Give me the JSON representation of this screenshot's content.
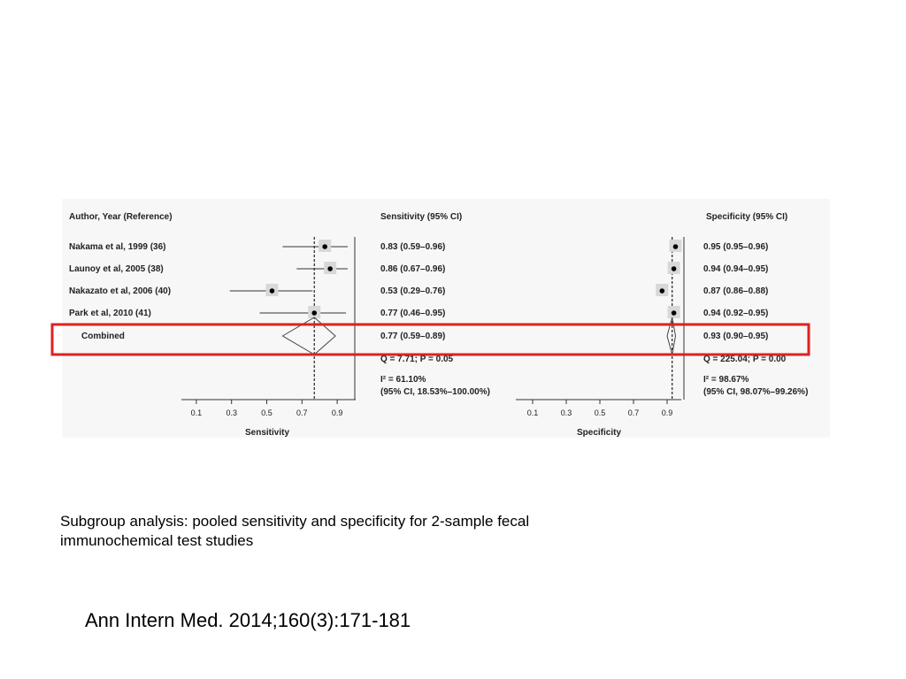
{
  "chart_data": {
    "type": "forest",
    "headers": {
      "study": "Author, Year (Reference)",
      "sensitivity": "Sensitivity (95% CI)",
      "specificity": "Specificity (95% CI)"
    },
    "studies": [
      {
        "label": "Nakama et al, 1999 (36)",
        "sens": 0.83,
        "sens_lo": 0.59,
        "sens_hi": 0.96,
        "sens_text": "0.83 (0.59–0.96)",
        "spec": 0.95,
        "spec_lo": 0.95,
        "spec_hi": 0.96,
        "spec_text": "0.95 (0.95–0.96)"
      },
      {
        "label": "Launoy et al, 2005 (38)",
        "sens": 0.86,
        "sens_lo": 0.67,
        "sens_hi": 0.96,
        "sens_text": "0.86 (0.67–0.96)",
        "spec": 0.94,
        "spec_lo": 0.94,
        "spec_hi": 0.95,
        "spec_text": "0.94 (0.94–0.95)"
      },
      {
        "label": "Nakazato et al, 2006 (40)",
        "sens": 0.53,
        "sens_lo": 0.29,
        "sens_hi": 0.76,
        "sens_text": "0.53 (0.29–0.76)",
        "spec": 0.87,
        "spec_lo": 0.86,
        "spec_hi": 0.88,
        "spec_text": "0.87 (0.86–0.88)"
      },
      {
        "label": "Park et al, 2010 (41)",
        "sens": 0.77,
        "sens_lo": 0.46,
        "sens_hi": 0.95,
        "sens_text": "0.77 (0.46–0.95)",
        "spec": 0.94,
        "spec_lo": 0.92,
        "spec_hi": 0.95,
        "spec_text": "0.94 (0.92–0.95)"
      }
    ],
    "combined": {
      "label": "Combined",
      "sens": 0.77,
      "sens_lo": 0.59,
      "sens_hi": 0.89,
      "sens_text": "0.77 (0.59–0.89)",
      "spec": 0.93,
      "spec_lo": 0.9,
      "spec_hi": 0.95,
      "spec_text": "0.93 (0.90–0.95)"
    },
    "heterogeneity": {
      "sens_q": "Q = 7.71; P = 0.05",
      "sens_i2": "I² = 61.10%",
      "sens_ci": "(95% CI, 18.53%–100.00%)",
      "spec_q": "Q = 225.04; P = 0.00",
      "spec_i2": "I² = 98.67%",
      "spec_ci": "(95% CI, 98.07%–99.26%)"
    },
    "x_ticks": [
      0.1,
      0.3,
      0.5,
      0.7,
      0.9
    ],
    "x_tick_labels": [
      "0.1",
      "0.3",
      "0.5",
      "0.7",
      "0.9"
    ],
    "xlim": [
      0.0,
      1.0
    ],
    "sens_xlabel": "Sensitivity",
    "spec_xlabel": "Specificity",
    "highlight_color": "#e02020"
  },
  "caption": {
    "line1": "Subgroup analysis: pooled sensitivity and specificity for 2-sample fecal",
    "line2": "immunochemical test studies"
  },
  "citation": "Ann Intern Med. 2014;160(3):171-181"
}
